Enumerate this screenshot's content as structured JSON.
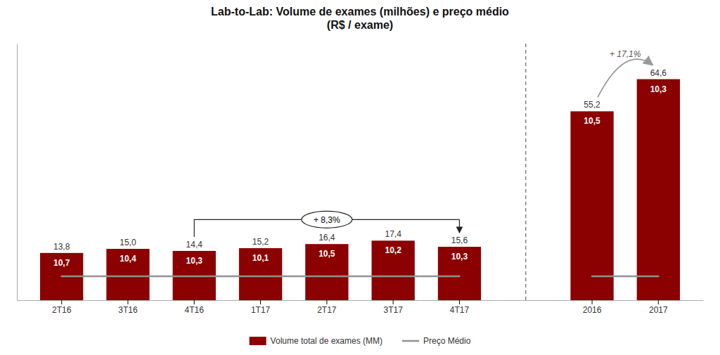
{
  "chart_data": {
    "type": "bar",
    "title": "Lab-to-Lab: Volume de exames (milhões) e preço médio\n(R$ / exame)",
    "categories": [
      "2T16",
      "3T16",
      "4T16",
      "1T17",
      "2T17",
      "3T17",
      "4T17",
      null,
      "2016",
      "2017"
    ],
    "series": [
      {
        "name": "Volume total de exames (MM)",
        "type": "bar",
        "color": "#8B0000",
        "values": [
          13.8,
          15.0,
          14.4,
          15.2,
          16.4,
          17.4,
          15.6,
          null,
          55.2,
          64.6
        ],
        "value_labels": [
          "13,8",
          "15,0",
          "14,4",
          "15,2",
          "16,4",
          "17,4",
          "15,6",
          null,
          "55,2",
          "64,6"
        ]
      },
      {
        "name": "Preço Médio",
        "type": "line",
        "color": "#909090",
        "values": [
          7.0,
          7.0,
          7.0,
          7.0,
          7.0,
          7.0,
          7.0,
          null,
          7.0,
          7.0
        ],
        "price_values": [
          10.7,
          10.4,
          10.3,
          10.1,
          10.5,
          10.2,
          10.3,
          null,
          10.5,
          10.3
        ],
        "price_labels": [
          "10,7",
          "10,4",
          "10,3",
          "10,1",
          "10,5",
          "10,2",
          "10,3",
          null,
          "10,5",
          "10,3"
        ]
      }
    ],
    "ylim": [
      0,
      75
    ],
    "tick_labels": "x",
    "grid": false,
    "legend": "bottom",
    "data_labels": true,
    "annotations": [
      {
        "type": "bracket",
        "text": "+ 8,3%",
        "from": "4T16",
        "to": "4T17"
      },
      {
        "type": "arc",
        "text": "+ 17,1%",
        "from": "2016",
        "to": "2017"
      }
    ]
  }
}
